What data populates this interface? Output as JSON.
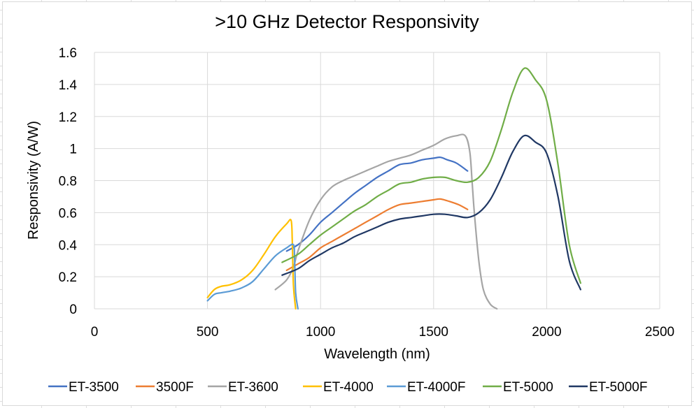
{
  "chart_data": {
    "type": "line",
    "title": ">10 GHz Detector Responsivity",
    "xlabel": "Wavelength (nm)",
    "ylabel": "Responsivity (A/W)",
    "xlim": [
      0,
      2500
    ],
    "ylim": [
      0,
      1.6
    ],
    "x_ticks": [
      "0",
      "500",
      "1000",
      "1500",
      "2000",
      "2500"
    ],
    "y_ticks": [
      "0",
      "0.2",
      "0.4",
      "0.6",
      "0.8",
      "1",
      "1.2",
      "1.4",
      "1.6"
    ],
    "x_tick_values": [
      0,
      500,
      1000,
      1500,
      2000,
      2500
    ],
    "y_tick_values": [
      0,
      0.2,
      0.4,
      0.6,
      0.8,
      1.0,
      1.2,
      1.4,
      1.6
    ],
    "grid": true,
    "legend_position": "bottom",
    "series": [
      {
        "name": "ET-3500",
        "color": "#4472c4",
        "points": [
          [
            850,
            0.36
          ],
          [
            900,
            0.4
          ],
          [
            950,
            0.46
          ],
          [
            1000,
            0.54
          ],
          [
            1050,
            0.6
          ],
          [
            1100,
            0.66
          ],
          [
            1150,
            0.72
          ],
          [
            1200,
            0.77
          ],
          [
            1250,
            0.82
          ],
          [
            1300,
            0.86
          ],
          [
            1350,
            0.9
          ],
          [
            1400,
            0.91
          ],
          [
            1450,
            0.93
          ],
          [
            1500,
            0.94
          ],
          [
            1530,
            0.945
          ],
          [
            1560,
            0.93
          ],
          [
            1600,
            0.91
          ],
          [
            1650,
            0.86
          ]
        ]
      },
      {
        "name": "3500F",
        "color": "#ed7d31",
        "points": [
          [
            850,
            0.24
          ],
          [
            900,
            0.28
          ],
          [
            950,
            0.32
          ],
          [
            1000,
            0.38
          ],
          [
            1050,
            0.42
          ],
          [
            1100,
            0.46
          ],
          [
            1150,
            0.5
          ],
          [
            1200,
            0.54
          ],
          [
            1250,
            0.58
          ],
          [
            1300,
            0.62
          ],
          [
            1350,
            0.65
          ],
          [
            1400,
            0.66
          ],
          [
            1450,
            0.67
          ],
          [
            1500,
            0.68
          ],
          [
            1530,
            0.685
          ],
          [
            1570,
            0.67
          ],
          [
            1610,
            0.65
          ],
          [
            1650,
            0.62
          ]
        ]
      },
      {
        "name": "ET-3600",
        "color": "#a5a5a5",
        "points": [
          [
            800,
            0.12
          ],
          [
            850,
            0.18
          ],
          [
            880,
            0.26
          ],
          [
            900,
            0.36
          ],
          [
            950,
            0.55
          ],
          [
            1000,
            0.68
          ],
          [
            1050,
            0.76
          ],
          [
            1100,
            0.8
          ],
          [
            1150,
            0.83
          ],
          [
            1200,
            0.86
          ],
          [
            1250,
            0.89
          ],
          [
            1300,
            0.92
          ],
          [
            1350,
            0.94
          ],
          [
            1400,
            0.96
          ],
          [
            1450,
            0.99
          ],
          [
            1500,
            1.02
          ],
          [
            1550,
            1.06
          ],
          [
            1600,
            1.08
          ],
          [
            1640,
            1.08
          ],
          [
            1660,
            0.98
          ],
          [
            1670,
            0.8
          ],
          [
            1680,
            0.6
          ],
          [
            1700,
            0.3
          ],
          [
            1720,
            0.12
          ],
          [
            1750,
            0.03
          ],
          [
            1780,
            0.0
          ]
        ]
      },
      {
        "name": "ET-4000",
        "color": "#ffc000",
        "points": [
          [
            500,
            0.07
          ],
          [
            530,
            0.12
          ],
          [
            560,
            0.14
          ],
          [
            600,
            0.15
          ],
          [
            650,
            0.18
          ],
          [
            700,
            0.24
          ],
          [
            750,
            0.34
          ],
          [
            800,
            0.45
          ],
          [
            850,
            0.53
          ],
          [
            870,
            0.55
          ],
          [
            875,
            0.42
          ],
          [
            880,
            0.15
          ],
          [
            890,
            0.0
          ]
        ]
      },
      {
        "name": "ET-4000F",
        "color": "#5b9bd5",
        "points": [
          [
            500,
            0.05
          ],
          [
            530,
            0.09
          ],
          [
            560,
            0.1
          ],
          [
            600,
            0.11
          ],
          [
            650,
            0.13
          ],
          [
            700,
            0.17
          ],
          [
            750,
            0.25
          ],
          [
            800,
            0.33
          ],
          [
            850,
            0.38
          ],
          [
            880,
            0.4
          ],
          [
            885,
            0.32
          ],
          [
            890,
            0.1
          ],
          [
            900,
            0.0
          ]
        ]
      },
      {
        "name": "ET-5000",
        "color": "#70ad47",
        "points": [
          [
            830,
            0.29
          ],
          [
            900,
            0.34
          ],
          [
            950,
            0.4
          ],
          [
            1000,
            0.46
          ],
          [
            1050,
            0.51
          ],
          [
            1100,
            0.56
          ],
          [
            1150,
            0.61
          ],
          [
            1200,
            0.65
          ],
          [
            1250,
            0.7
          ],
          [
            1300,
            0.74
          ],
          [
            1350,
            0.78
          ],
          [
            1400,
            0.79
          ],
          [
            1450,
            0.81
          ],
          [
            1500,
            0.82
          ],
          [
            1550,
            0.82
          ],
          [
            1600,
            0.8
          ],
          [
            1650,
            0.79
          ],
          [
            1700,
            0.82
          ],
          [
            1750,
            0.92
          ],
          [
            1800,
            1.12
          ],
          [
            1850,
            1.35
          ],
          [
            1900,
            1.5
          ],
          [
            1950,
            1.43
          ],
          [
            2000,
            1.3
          ],
          [
            2050,
            0.9
          ],
          [
            2100,
            0.4
          ],
          [
            2150,
            0.16
          ]
        ]
      },
      {
        "name": "ET-5000F",
        "color": "#203864",
        "points": [
          [
            830,
            0.21
          ],
          [
            900,
            0.25
          ],
          [
            950,
            0.3
          ],
          [
            1000,
            0.34
          ],
          [
            1050,
            0.38
          ],
          [
            1100,
            0.41
          ],
          [
            1150,
            0.45
          ],
          [
            1200,
            0.48
          ],
          [
            1250,
            0.51
          ],
          [
            1300,
            0.54
          ],
          [
            1350,
            0.56
          ],
          [
            1400,
            0.57
          ],
          [
            1450,
            0.58
          ],
          [
            1500,
            0.59
          ],
          [
            1550,
            0.59
          ],
          [
            1600,
            0.58
          ],
          [
            1650,
            0.57
          ],
          [
            1700,
            0.6
          ],
          [
            1750,
            0.68
          ],
          [
            1800,
            0.82
          ],
          [
            1850,
            0.98
          ],
          [
            1900,
            1.08
          ],
          [
            1950,
            1.04
          ],
          [
            2000,
            0.97
          ],
          [
            2050,
            0.7
          ],
          [
            2100,
            0.3
          ],
          [
            2150,
            0.12
          ]
        ]
      }
    ]
  }
}
